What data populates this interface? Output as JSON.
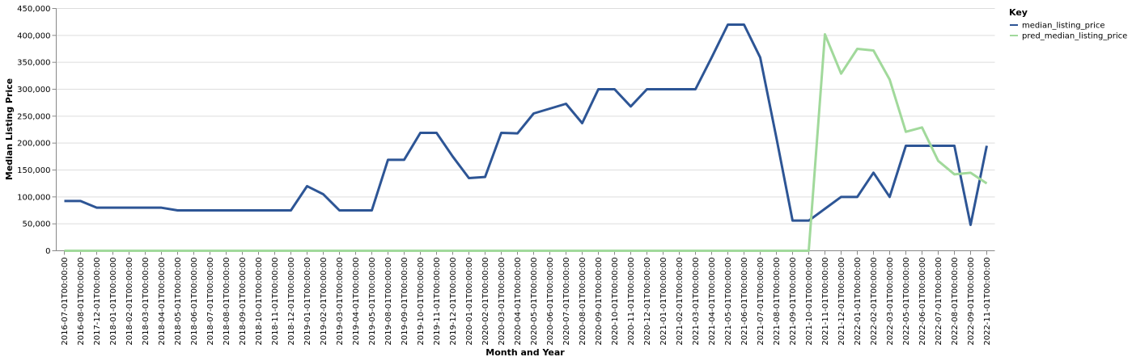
{
  "chart_data": {
    "type": "line",
    "xlabel": "Month and Year",
    "ylabel": "Median Listing Price",
    "ylim": [
      0,
      450000
    ],
    "yticks": [
      "0",
      "50,000",
      "100,000",
      "150,000",
      "200,000",
      "250,000",
      "300,000",
      "350,000",
      "400,000",
      "450,000"
    ],
    "grid": true,
    "legend": {
      "title": "Key",
      "placement": "top-right"
    },
    "categories": [
      "2016-07-01T00:00:00",
      "2016-08-01T00:00:00",
      "2017-12-01T00:00:00",
      "2018-01-01T00:00:00",
      "2018-02-01T00:00:00",
      "2018-03-01T00:00:00",
      "2018-04-01T00:00:00",
      "2018-05-01T00:00:00",
      "2018-06-01T00:00:00",
      "2018-07-01T00:00:00",
      "2018-08-01T00:00:00",
      "2018-09-01T00:00:00",
      "2018-10-01T00:00:00",
      "2018-11-01T00:00:00",
      "2018-12-01T00:00:00",
      "2019-01-01T00:00:00",
      "2019-02-01T00:00:00",
      "2019-03-01T00:00:00",
      "2019-04-01T00:00:00",
      "2019-05-01T00:00:00",
      "2019-08-01T00:00:00",
      "2019-09-01T00:00:00",
      "2019-10-01T00:00:00",
      "2019-11-01T00:00:00",
      "2019-12-01T00:00:00",
      "2020-01-01T00:00:00",
      "2020-02-01T00:00:00",
      "2020-03-01T00:00:00",
      "2020-04-01T00:00:00",
      "2020-05-01T00:00:00",
      "2020-06-01T00:00:00",
      "2020-07-01T00:00:00",
      "2020-08-01T00:00:00",
      "2020-09-01T00:00:00",
      "2020-10-01T00:00:00",
      "2020-11-01T00:00:00",
      "2020-12-01T00:00:00",
      "2021-01-01T00:00:00",
      "2021-02-01T00:00:00",
      "2021-03-01T00:00:00",
      "2021-04-01T00:00:00",
      "2021-05-01T00:00:00",
      "2021-06-01T00:00:00",
      "2021-07-01T00:00:00",
      "2021-08-01T00:00:00",
      "2021-09-01T00:00:00",
      "2021-10-01T00:00:00",
      "2021-11-01T00:00:00",
      "2021-12-01T00:00:00",
      "2022-01-01T00:00:00",
      "2022-02-01T00:00:00",
      "2022-03-01T00:00:00",
      "2022-05-01T00:00:00",
      "2022-06-01T00:00:00",
      "2022-07-01T00:00:00",
      "2022-08-01T00:00:00",
      "2022-09-01T00:00:00",
      "2022-11-01T00:00:00"
    ],
    "series": [
      {
        "name": "median_listing_price",
        "color": "#2d5595",
        "values": [
          92500,
          92500,
          80000,
          80000,
          80000,
          80000,
          80000,
          75000,
          75000,
          75000,
          75000,
          75000,
          75000,
          75000,
          75000,
          120000,
          105000,
          75000,
          75000,
          75000,
          169000,
          169000,
          219000,
          219000,
          175000,
          135000,
          137000,
          219000,
          218000,
          255000,
          264000,
          273000,
          237000,
          300000,
          300000,
          268000,
          300000,
          300000,
          300000,
          300000,
          359000,
          420000,
          420000,
          359000,
          210000,
          56000,
          56000,
          78000,
          100000,
          100000,
          145000,
          100000,
          195000,
          195000,
          195000,
          195000,
          48000,
          195000
        ]
      },
      {
        "name": "pred_median_listing_price",
        "color": "#a1d99b",
        "values": [
          0,
          0,
          0,
          0,
          0,
          0,
          0,
          0,
          0,
          0,
          0,
          0,
          0,
          0,
          0,
          0,
          0,
          0,
          0,
          0,
          0,
          0,
          0,
          0,
          0,
          0,
          0,
          0,
          0,
          0,
          0,
          0,
          0,
          0,
          0,
          0,
          0,
          0,
          0,
          0,
          0,
          0,
          0,
          0,
          0,
          0,
          0,
          402000,
          329000,
          375000,
          372000,
          318000,
          221000,
          229000,
          167000,
          142000,
          145000,
          125000
        ]
      }
    ]
  }
}
